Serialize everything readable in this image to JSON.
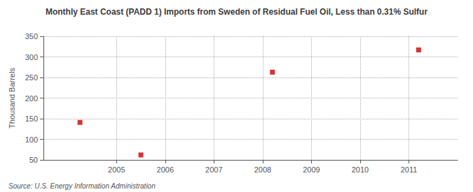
{
  "chart_data": {
    "type": "scatter",
    "title": "Monthly East Coast (PADD 1) Imports from Sweden of Residual Fuel Oil, Less than 0.31% Sulfur",
    "ylabel": "Thousand Barrels",
    "annotations": [
      "Source: U.S. Energy Information Administration"
    ],
    "x": [
      2004.25,
      2005.5,
      2008.2,
      2011.2
    ],
    "values": [
      141,
      62,
      263,
      317
    ],
    "color": "#cc0000",
    "marker": "square",
    "xlim": [
      2003.5,
      2012.0
    ],
    "xticks": [
      2005,
      2006,
      2007,
      2008,
      2009,
      2010,
      2011
    ],
    "ylim": [
      50,
      350
    ],
    "yticks": [
      50,
      100,
      150,
      200,
      250,
      300,
      350
    ],
    "grid": true
  }
}
